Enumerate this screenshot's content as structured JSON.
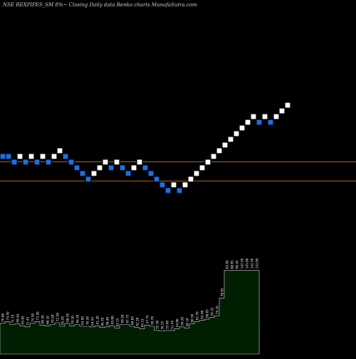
{
  "header": {
    "title": "NSE REXPIPES_SM 8%~  Closing Daily data  Renko  charts MunafaSutra.com"
  },
  "colors": {
    "background": "#000000",
    "up_brick": "#ffffff",
    "down_brick": "#1e6ee6",
    "brick_border": "#000000",
    "reference_line": "#b5651d",
    "volume_fill": "#001f00",
    "volume_stroke": "#d9d9d9",
    "volume_label": "#ffffff"
  },
  "chart_data": [
    {
      "type": "renko",
      "brick_size_percent": 8,
      "bricks": [
        {
          "index": 0,
          "level": 0,
          "dir": "down"
        },
        {
          "index": 1,
          "level": 0,
          "dir": "down"
        },
        {
          "index": 2,
          "level": -1,
          "dir": "down"
        },
        {
          "index": 3,
          "level": 0,
          "dir": "up"
        },
        {
          "index": 4,
          "level": -1,
          "dir": "down"
        },
        {
          "index": 5,
          "level": 0,
          "dir": "up"
        },
        {
          "index": 6,
          "level": -1,
          "dir": "down"
        },
        {
          "index": 7,
          "level": 0,
          "dir": "up"
        },
        {
          "index": 8,
          "level": -1,
          "dir": "down"
        },
        {
          "index": 9,
          "level": 0,
          "dir": "up"
        },
        {
          "index": 10,
          "level": 1,
          "dir": "up"
        },
        {
          "index": 11,
          "level": 0,
          "dir": "down"
        },
        {
          "index": 12,
          "level": -1,
          "dir": "down"
        },
        {
          "index": 13,
          "level": -2,
          "dir": "down"
        },
        {
          "index": 14,
          "level": -3,
          "dir": "down"
        },
        {
          "index": 15,
          "level": -4,
          "dir": "down"
        },
        {
          "index": 16,
          "level": -3,
          "dir": "up"
        },
        {
          "index": 17,
          "level": -2,
          "dir": "up"
        },
        {
          "index": 18,
          "level": -1,
          "dir": "up"
        },
        {
          "index": 19,
          "level": -2,
          "dir": "down"
        },
        {
          "index": 20,
          "level": -1,
          "dir": "up"
        },
        {
          "index": 21,
          "level": -2,
          "dir": "down"
        },
        {
          "index": 22,
          "level": -3,
          "dir": "down"
        },
        {
          "index": 23,
          "level": -2,
          "dir": "up"
        },
        {
          "index": 24,
          "level": -1,
          "dir": "up"
        },
        {
          "index": 25,
          "level": -2,
          "dir": "down"
        },
        {
          "index": 26,
          "level": -3,
          "dir": "down"
        },
        {
          "index": 27,
          "level": -4,
          "dir": "down"
        },
        {
          "index": 28,
          "level": -5,
          "dir": "down"
        },
        {
          "index": 29,
          "level": -6,
          "dir": "down"
        },
        {
          "index": 30,
          "level": -5,
          "dir": "up"
        },
        {
          "index": 31,
          "level": -6,
          "dir": "down"
        },
        {
          "index": 32,
          "level": -5,
          "dir": "up"
        },
        {
          "index": 33,
          "level": -4,
          "dir": "up"
        },
        {
          "index": 34,
          "level": -3,
          "dir": "up"
        },
        {
          "index": 35,
          "level": -2,
          "dir": "up"
        },
        {
          "index": 36,
          "level": -1,
          "dir": "up"
        },
        {
          "index": 37,
          "level": 0,
          "dir": "up"
        },
        {
          "index": 38,
          "level": 1,
          "dir": "up"
        },
        {
          "index": 39,
          "level": 2,
          "dir": "up"
        },
        {
          "index": 40,
          "level": 3,
          "dir": "up"
        },
        {
          "index": 41,
          "level": 4,
          "dir": "up"
        },
        {
          "index": 42,
          "level": 5,
          "dir": "up"
        },
        {
          "index": 43,
          "level": 6,
          "dir": "up"
        },
        {
          "index": 44,
          "level": 7,
          "dir": "up"
        },
        {
          "index": 45,
          "level": 6,
          "dir": "down"
        },
        {
          "index": 46,
          "level": 7,
          "dir": "up"
        },
        {
          "index": 47,
          "level": 6,
          "dir": "down"
        },
        {
          "index": 48,
          "level": 7,
          "dir": "up"
        },
        {
          "index": 49,
          "level": 8,
          "dir": "up"
        },
        {
          "index": 50,
          "level": 9,
          "dir": "up"
        }
      ],
      "reference_levels": [
        -1.2,
        -4.6
      ]
    },
    {
      "type": "area",
      "series": [
        {
          "values": [
            52,
            55,
            50,
            51,
            48,
            46,
            52,
            55,
            49,
            48,
            50,
            53,
            47,
            52,
            48,
            50,
            47,
            47,
            46,
            48,
            45,
            46,
            48,
            44,
            50,
            50,
            47,
            45,
            43,
            49,
            47,
            40,
            39,
            40,
            40,
            43,
            46,
            44,
            51,
            55,
            57,
            59,
            62,
            65,
            95,
            142,
            142,
            142,
            142,
            142,
            142,
            142
          ],
          "labels": [
            "76.00",
            "73.50",
            "71.75",
            "69.44",
            "65.05",
            "72.45",
            "74.50",
            "73.30",
            "66.50",
            "68.10",
            "70.20",
            "72.50",
            "65.20",
            "68.50",
            "70.10",
            "66.35",
            "63.90",
            "70.30",
            "64.55",
            "61.20",
            "66.70",
            "68.40",
            "65.00",
            "63.15",
            "69.50",
            "67.75",
            "60.85",
            "62.20",
            "64.15",
            "57.75",
            "59.70",
            "55.30",
            "56.25",
            "53.60",
            "51.45",
            "54.00",
            "56.20",
            "58.10",
            "60.50",
            "62.70",
            "65.40",
            "68.05",
            "70.32",
            "74.10",
            "78.65",
            "83.50",
            "88.95",
            "96.45",
            "142.50",
            "145.00",
            "142.50",
            "152.00"
          ]
        }
      ]
    }
  ]
}
